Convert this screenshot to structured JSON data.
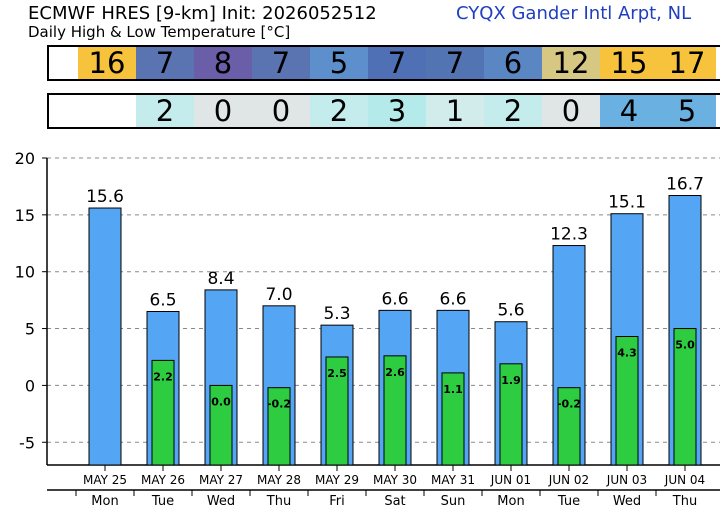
{
  "header": {
    "title": "ECMWF HRES [9-km] Init: 2026052512",
    "subtitle": "Daily High & Low Temperature [°C]",
    "station": "CYQX Gander Intl Arpt, NL"
  },
  "high_strip": {
    "values": [
      "16",
      "7",
      "8",
      "7",
      "5",
      "7",
      "7",
      "6",
      "12",
      "15",
      "17"
    ],
    "colors": [
      "#f7c23c",
      "#5a74b2",
      "#6a5ea8",
      "#5a74b2",
      "#5c8fcc",
      "#4f70b4",
      "#5274b2",
      "#5a86c4",
      "#d6c882",
      "#f7c23c",
      "#f7c23c"
    ]
  },
  "low_strip": {
    "values": [
      "2",
      "0",
      "0",
      "2",
      "3",
      "1",
      "2",
      "0",
      "4",
      "5"
    ],
    "colors": [
      "#c4ecec",
      "#e0e6e6",
      "#e0e6e6",
      "#c4ecec",
      "#b4eaea",
      "#d2ecec",
      "#c4ecec",
      "#e0e6e6",
      "#6ab0e0",
      "#6ab0e0"
    ]
  },
  "chart_data": {
    "type": "bar",
    "title": "",
    "xlabel": "",
    "ylabel": "",
    "ylim": [
      -7,
      20
    ],
    "yticks": [
      -5,
      0,
      5,
      10,
      15,
      20
    ],
    "grid": true,
    "categories": [
      "MAY 25",
      "MAY 26",
      "MAY 27",
      "MAY 28",
      "MAY 29",
      "MAY 30",
      "MAY 31",
      "JUN 01",
      "JUN 02",
      "JUN 03",
      "JUN 04"
    ],
    "weekdays": [
      "Mon",
      "Tue",
      "Wed",
      "Thu",
      "Fri",
      "Sat",
      "Sun",
      "Mon",
      "Tue",
      "Wed",
      "Thu"
    ],
    "series": [
      {
        "values": [
          15.6,
          6.5,
          8.4,
          7.0,
          5.3,
          6.6,
          6.6,
          5.6,
          12.3,
          15.1,
          16.7
        ],
        "labels": [
          "15.6",
          "6.5",
          "8.4",
          "7.0",
          "5.3",
          "6.6",
          "6.6",
          "5.6",
          "12.3",
          "15.1",
          "16.7"
        ],
        "color": "#55a5f5"
      },
      {
        "values": [
          null,
          2.2,
          0.0,
          -0.2,
          2.5,
          2.6,
          1.1,
          1.9,
          -0.2,
          4.3,
          5.0
        ],
        "labels": [
          "",
          "2.2",
          "0.0",
          "-0.2",
          "2.5",
          "2.6",
          "1.1",
          "1.9",
          "-0.2",
          "4.3",
          "5.0"
        ],
        "color": "#2ecc40"
      }
    ]
  }
}
